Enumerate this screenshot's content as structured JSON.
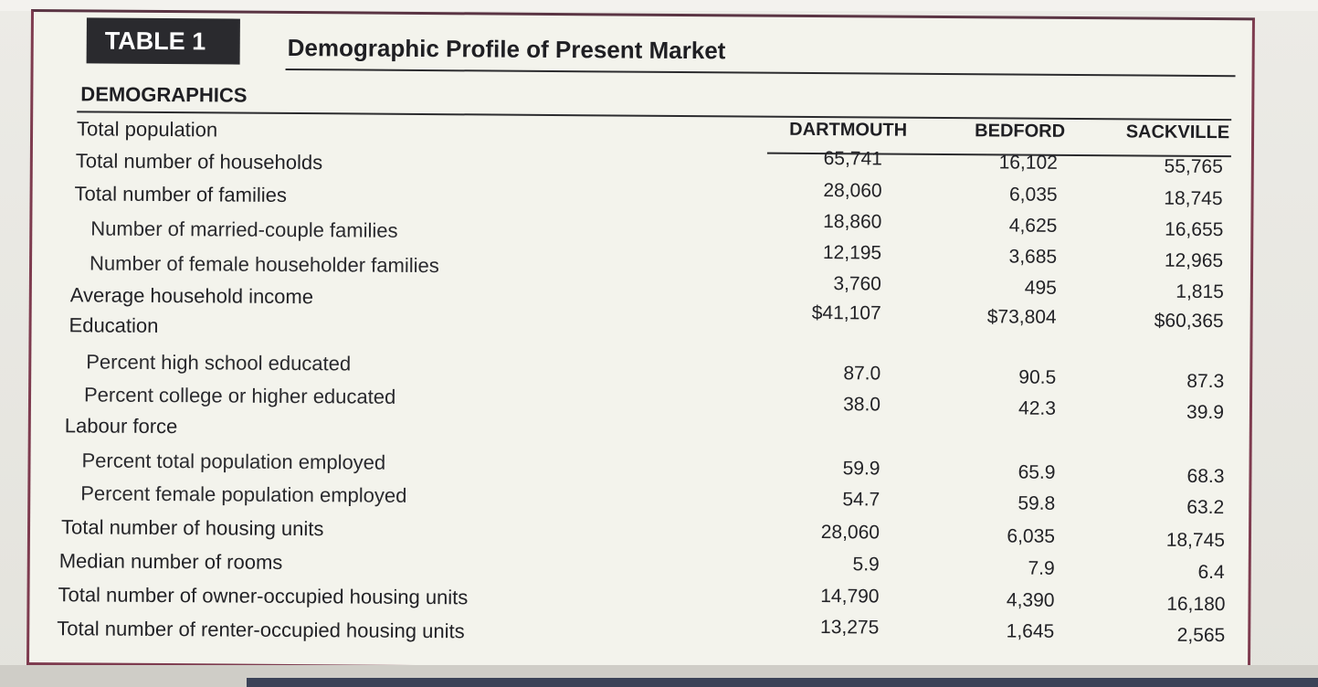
{
  "table": {
    "label": "TABLE 1",
    "title": "Demographic Profile of Present Market",
    "section_header": "DEMOGRAPHICS",
    "columns": [
      "DARTMOUTH",
      "BEDFORD",
      "SACKVILLE"
    ],
    "rows": [
      {
        "label": "Total population",
        "indent": 0,
        "values": [
          "65,741",
          "16,102",
          "55,765"
        ]
      },
      {
        "label": "Total number of households",
        "indent": 0,
        "values": [
          "28,060",
          "6,035",
          "18,745"
        ]
      },
      {
        "label": "Total number of families",
        "indent": 0,
        "values": [
          "18,860",
          "4,625",
          "16,655"
        ]
      },
      {
        "label": "Number of married-couple families",
        "indent": 1,
        "values": [
          "12,195",
          "3,685",
          "12,965"
        ]
      },
      {
        "label": "Number of female householder families",
        "indent": 1,
        "values": [
          "3,760",
          "495",
          "1,815"
        ]
      },
      {
        "label": "Average household income",
        "indent": 0,
        "values": [
          "$41,107",
          "$73,804",
          "$60,365"
        ]
      },
      {
        "label": "Education",
        "indent": 0,
        "values": [
          "",
          "",
          ""
        ]
      },
      {
        "label": "Percent high school educated",
        "indent": 1,
        "values": [
          "87.0",
          "90.5",
          "87.3"
        ]
      },
      {
        "label": "Percent college or higher educated",
        "indent": 1,
        "values": [
          "38.0",
          "42.3",
          "39.9"
        ]
      },
      {
        "label": "Labour force",
        "indent": 0,
        "values": [
          "",
          "",
          ""
        ]
      },
      {
        "label": "Percent total population employed",
        "indent": 1,
        "values": [
          "59.9",
          "65.9",
          "68.3"
        ]
      },
      {
        "label": "Percent female population employed",
        "indent": 1,
        "values": [
          "54.7",
          "59.8",
          "63.2"
        ]
      },
      {
        "label": "Total number of housing units",
        "indent": 0,
        "values": [
          "28,060",
          "6,035",
          "18,745"
        ]
      },
      {
        "label": "Median number of rooms",
        "indent": 0,
        "values": [
          "5.9",
          "7.9",
          "6.4"
        ]
      },
      {
        "label": "Total number of owner-occupied housing units",
        "indent": 0,
        "values": [
          "14,790",
          "4,390",
          "16,180"
        ]
      },
      {
        "label": "Total number of renter-occupied housing units",
        "indent": 0,
        "values": [
          "13,275",
          "1,645",
          "2,565"
        ]
      }
    ]
  }
}
